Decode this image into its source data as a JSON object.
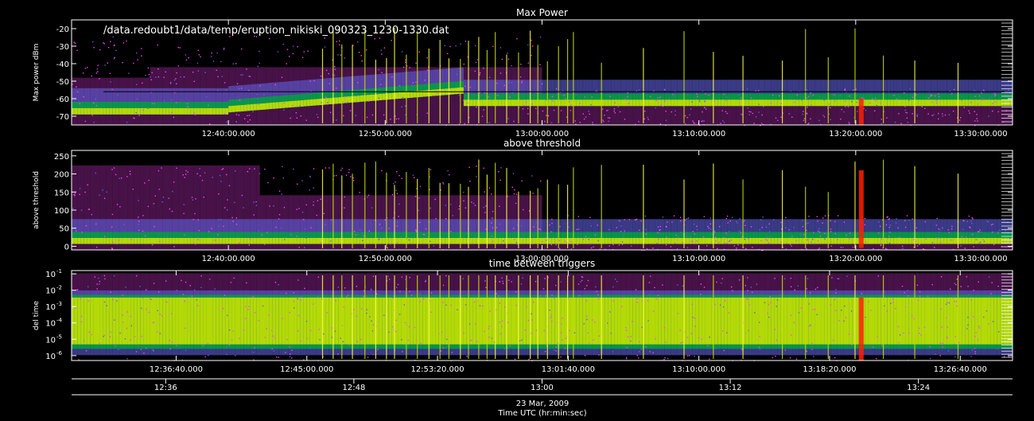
{
  "chart_data": [
    {
      "type": "heatmap",
      "title": "Max Power",
      "ylabel": "Max power dBm",
      "annotation": "/data.redoubt1/data/temp/eruption_nikiski_090323_1230-1330.dat",
      "ylim": [
        -75,
        -15
      ],
      "y_tick_labels": [
        "-20",
        "-30",
        "-40",
        "-50",
        "-60",
        "-70"
      ],
      "y_tick_values": [
        -20,
        -30,
        -40,
        -50,
        -60,
        -70
      ],
      "x_tick_labels": [
        "12:40:00.000",
        "12:50:00.000",
        "13:00:00.000",
        "13:10:00.000",
        "13:20:00.000",
        "13:30:00.000"
      ],
      "x_tick_minutes": [
        10,
        20,
        30,
        40,
        50,
        60
      ],
      "xlim_minutes": [
        0,
        60
      ],
      "reference_line": -56
    },
    {
      "type": "heatmap",
      "title": "above threshold",
      "ylabel": "above threshold",
      "ylim": [
        -10,
        265
      ],
      "y_tick_labels": [
        "250",
        "200",
        "150",
        "100",
        "50",
        "0"
      ],
      "y_tick_values": [
        250,
        200,
        150,
        100,
        50,
        0
      ],
      "x_tick_labels": [
        "12:40:00.000",
        "12:50:00.000",
        "13:00:00.000",
        "13:10:00.000",
        "13:20:00.000",
        "13:30:00.000"
      ],
      "x_tick_minutes": [
        10,
        20,
        30,
        40,
        50,
        60
      ],
      "xlim_minutes": [
        0,
        60
      ]
    },
    {
      "type": "heatmap",
      "title": "time between triggers",
      "ylabel": "del time",
      "y_scale": "log",
      "ylim_log10": [
        -6.3,
        -0.8
      ],
      "y_tick_bases": [
        "10",
        "10",
        "10",
        "10",
        "10",
        "10"
      ],
      "y_tick_exponents": [
        "-1",
        "-2",
        "-3",
        "-4",
        "-5",
        "-6"
      ],
      "y_tick_log10": [
        -1,
        -2,
        -3,
        -4,
        -5,
        -6
      ],
      "x_tick_labels": [
        "12:36:40.000",
        "12:45:00.000",
        "12:53:20.000",
        "13:01:40.000",
        "13:10:00.000",
        "13:18:20.000",
        "13:26:40.000"
      ],
      "x_tick_minutes": [
        6.667,
        15,
        23.333,
        31.667,
        40,
        48.333,
        56.667
      ],
      "xlim_minutes": [
        0,
        60
      ]
    }
  ],
  "time_axis": {
    "labels": [
      "12:36",
      "12:48",
      "13:00",
      "13:12",
      "13:24"
    ],
    "label_minutes": [
      6,
      18,
      30,
      42,
      54
    ],
    "date": "23 Mar, 2009",
    "caption": "Time UTC (hr:min:sec)"
  },
  "colors": {
    "background": "#000000",
    "axes": "#ffffff",
    "scale_low": "#ff40ff",
    "scale_mid_low": "#6060e0",
    "scale_mid": "#00a040",
    "scale_mid_high": "#c8e000",
    "scale_high": "#ffff40",
    "scale_peak": "#ff2000"
  }
}
